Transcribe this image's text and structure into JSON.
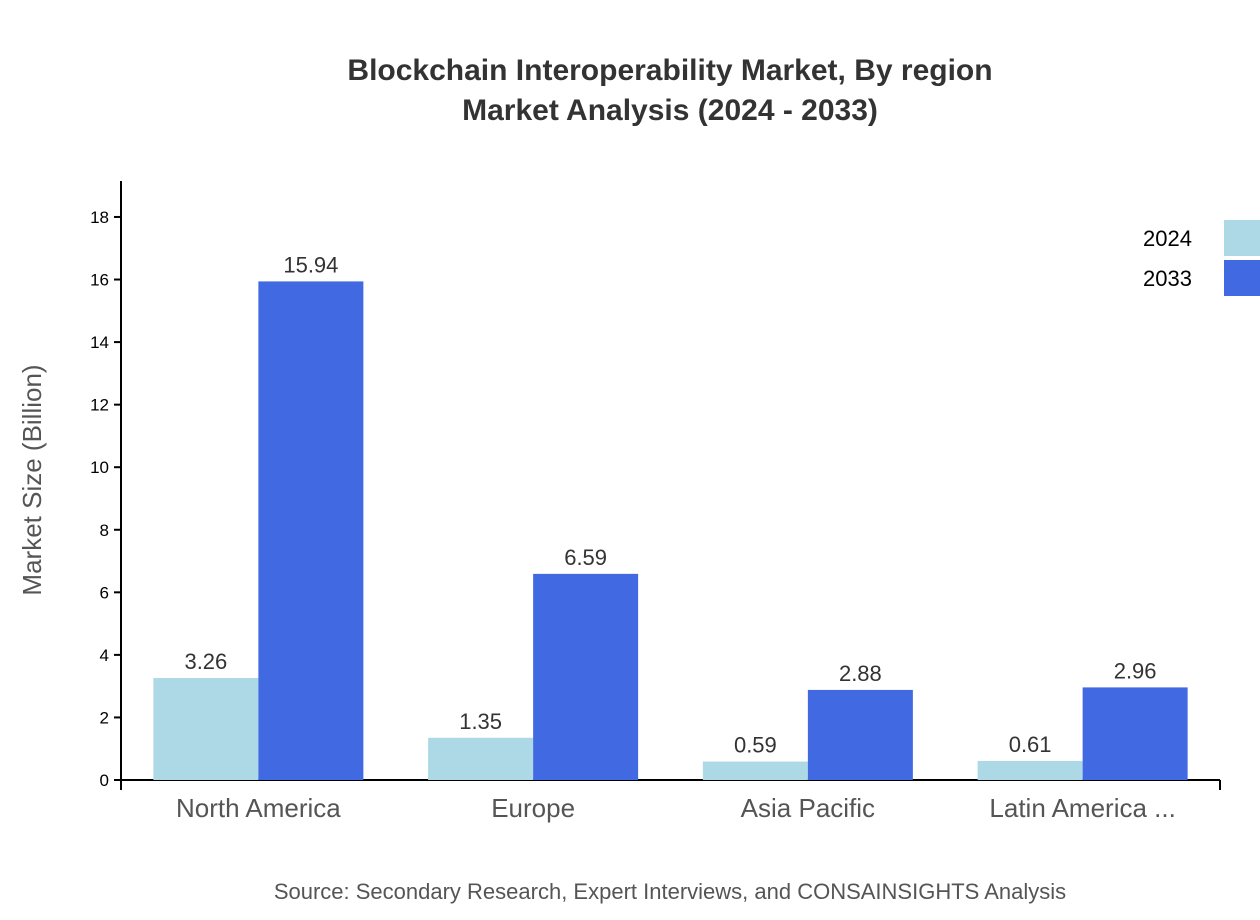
{
  "chart_data": {
    "type": "bar",
    "title": "Blockchain Interoperability Market, By region",
    "subtitle": "Market Analysis (2024 - 2033)",
    "xlabel": "",
    "ylabel": "Market Size (Billion)",
    "categories": [
      "North America",
      "Europe",
      "Asia Pacific",
      "Latin America ..."
    ],
    "series": [
      {
        "name": "2024",
        "color": "#add8e6",
        "values": [
          3.26,
          1.35,
          0.59,
          0.61
        ]
      },
      {
        "name": "2033",
        "color": "#4169e1",
        "values": [
          15.94,
          6.59,
          2.88,
          2.96
        ]
      }
    ],
    "yticks": [
      0,
      2,
      4,
      6,
      8,
      10,
      12,
      14,
      16,
      18
    ],
    "ylim": [
      0,
      19.15
    ],
    "grid": false,
    "legend_placement": "top-right",
    "source": "Source: Secondary Research, Expert Interviews, and CONSAINSIGHTS Analysis"
  }
}
